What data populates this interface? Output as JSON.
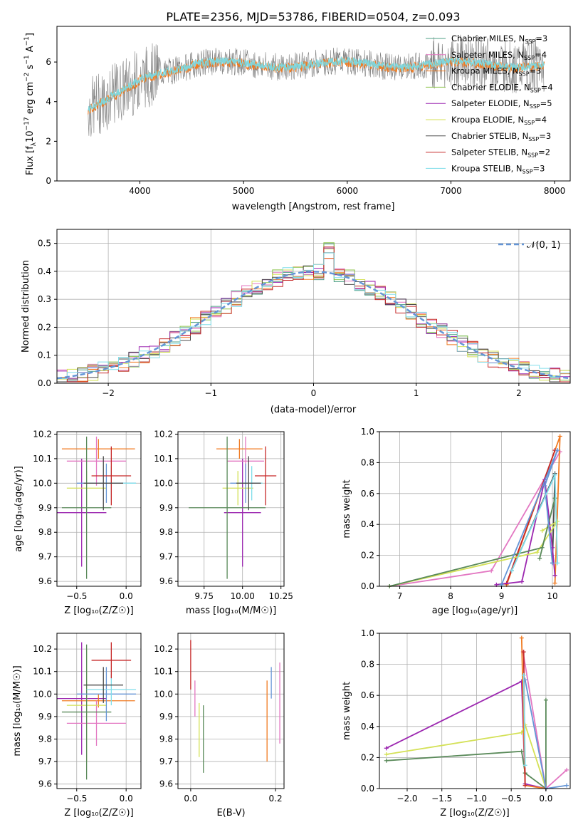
{
  "figure": {
    "title": "PLATE=2356, MJD=53786, FIBERID=0504, z=0.093"
  },
  "legend_models": [
    {
      "name": "Chabrier MILES, N",
      "sub": "SSP",
      "n": "=3",
      "color": "#4c9f85"
    },
    {
      "name": "Salpeter MILES, N",
      "sub": "SSP",
      "n": "=4",
      "color": "#e377c2"
    },
    {
      "name": "Kroupa MILES, N",
      "sub": "SSP",
      "n": "=3",
      "color": "#f07b22"
    },
    {
      "name": "Chabrier ELODIE, N",
      "sub": "SSP",
      "n": "=4",
      "color": "#8bc34a"
    },
    {
      "name": "Salpeter ELODIE, N",
      "sub": "SSP",
      "n": "=5",
      "color": "#9c27b0"
    },
    {
      "name": "Kroupa ELODIE, N",
      "sub": "SSP",
      "n": "=4",
      "color": "#d4e157"
    },
    {
      "name": "Chabrier STELIB, N",
      "sub": "SSP",
      "n": "=3",
      "color": "#4a4a4a"
    },
    {
      "name": "Salpeter STELIB, N",
      "sub": "SSP",
      "n": "=2",
      "color": "#c62828"
    },
    {
      "name": "Kroupa STELIB, N",
      "sub": "SSP",
      "n": "=3",
      "color": "#80deea"
    }
  ],
  "chart_data": [
    {
      "type": "line",
      "panel": "spectrum",
      "xlabel": "wavelength [Angstrom, rest frame]",
      "ylabel_parts": {
        "main": "Flux [f",
        "lam": "λ",
        "mid": "10",
        "exp1": "−17",
        "unit": " erg cm",
        "exp2": "−2",
        "s": " s",
        "exp3": "−1",
        "a": " A",
        "exp4": "−1",
        "end": "]"
      },
      "xlim": [
        3200,
        8150
      ],
      "ylim": [
        0,
        7.8
      ],
      "xticks": [
        4000,
        5000,
        6000,
        7000,
        8000
      ],
      "yticks": [
        0,
        2,
        4,
        6
      ],
      "grid": false,
      "legend_position": "upper-right",
      "data_color": "#808080",
      "model_color": "#7fd6dc",
      "model_alt_color": "#f07b22"
    },
    {
      "type": "histogram",
      "panel": "residuals",
      "xlabel": "(data-model)/error",
      "ylabel": "Normed distribution",
      "xlim": [
        -2.5,
        2.5
      ],
      "ylim": [
        0,
        0.55
      ],
      "xticks": [
        -2,
        -1,
        0,
        1,
        2
      ],
      "yticks": [
        0.0,
        0.1,
        0.2,
        0.3,
        0.4,
        0.5
      ],
      "grid": true,
      "legend_position": "upper-right",
      "legend_label": "𝒩(0, 1)",
      "legend_color": "#6495d6"
    },
    {
      "type": "scatter",
      "panel": "age-Z",
      "xlabel": "Z [log₁₀(Z/Z☉)]",
      "ylabel": "age  [log₁₀(age/yr)]",
      "xlim": [
        -0.7,
        0.15
      ],
      "ylim": [
        9.58,
        10.21
      ],
      "xticks": [
        -0.5,
        0.0
      ],
      "yticks": [
        9.6,
        9.7,
        9.8,
        9.9,
        10.0,
        10.1,
        10.2
      ],
      "points": [
        {
          "x": -0.45,
          "xerr": 0.25,
          "y": 9.88,
          "yerr": 0.22,
          "color": "#9c27b0"
        },
        {
          "x": -0.28,
          "xerr": 0.37,
          "y": 10.14,
          "yerr": 0.04,
          "color": "#f07b22"
        },
        {
          "x": -0.3,
          "xerr": 0.3,
          "y": 10.09,
          "yerr": 0.1,
          "color": "#e377c2"
        },
        {
          "x": -0.4,
          "xerr": 0.2,
          "y": 9.98,
          "yerr": 0.07,
          "color": "#d4e157"
        },
        {
          "x": -0.4,
          "xerr": 0.25,
          "y": 9.9,
          "yerr": 0.29,
          "color": "#5a8a5a"
        },
        {
          "x": -0.2,
          "xerr": 0.3,
          "y": 10.0,
          "yerr": 0.08,
          "color": "#6495d6"
        },
        {
          "x": -0.15,
          "xerr": 0.25,
          "y": 10.0,
          "yerr": 0.07,
          "color": "#80deea"
        },
        {
          "x": -0.15,
          "xerr": 0.2,
          "y": 10.03,
          "yerr": 0.12,
          "color": "#c62828"
        },
        {
          "x": -0.23,
          "xerr": 0.2,
          "y": 10.0,
          "yerr": 0.11,
          "color": "#4a4a4a"
        }
      ]
    },
    {
      "type": "scatter",
      "panel": "age-mass",
      "xlabel": "mass [log₁₀(M/M☉)]",
      "ylabel": "",
      "xlim": [
        9.58,
        10.27
      ],
      "ylim": [
        9.58,
        10.21
      ],
      "xticks": [
        9.75,
        10.0,
        10.25
      ],
      "yticks": [
        9.6,
        9.7,
        9.8,
        9.9,
        10.0,
        10.1,
        10.2
      ],
      "points": [
        {
          "x": 10.0,
          "xerr": 0.12,
          "y": 9.88,
          "yerr": 0.22,
          "color": "#9c27b0"
        },
        {
          "x": 9.98,
          "xerr": 0.15,
          "y": 10.14,
          "yerr": 0.04,
          "color": "#f07b22"
        },
        {
          "x": 10.02,
          "xerr": 0.12,
          "y": 10.09,
          "yerr": 0.1,
          "color": "#e377c2"
        },
        {
          "x": 9.97,
          "xerr": 0.1,
          "y": 9.98,
          "yerr": 0.07,
          "color": "#d4e157"
        },
        {
          "x": 9.9,
          "xerr": 0.25,
          "y": 9.9,
          "yerr": 0.29,
          "color": "#5a8a5a"
        },
        {
          "x": 10.02,
          "xerr": 0.1,
          "y": 10.0,
          "yerr": 0.08,
          "color": "#6495d6"
        },
        {
          "x": 10.06,
          "xerr": 0.07,
          "y": 10.0,
          "yerr": 0.07,
          "color": "#80deea"
        },
        {
          "x": 10.15,
          "xerr": 0.07,
          "y": 10.03,
          "yerr": 0.12,
          "color": "#c62828"
        },
        {
          "x": 10.04,
          "xerr": 0.08,
          "y": 10.0,
          "yerr": 0.11,
          "color": "#4a4a4a"
        }
      ]
    },
    {
      "type": "line",
      "panel": "weight-age",
      "xlabel": "age  [log₁₀(age/yr)]",
      "ylabel": "mass weight",
      "xlim": [
        6.6,
        10.35
      ],
      "ylim": [
        0,
        1.0
      ],
      "xticks": [
        7,
        8,
        9,
        10
      ],
      "yticks": [
        0.0,
        0.2,
        0.4,
        0.6,
        0.8,
        1.0
      ],
      "grid": true,
      "series": [
        {
          "color": "#4a4a4a",
          "x": [
            9.2,
            10.05,
            10.0
          ],
          "y": [
            0.1,
            0.73,
            0.15
          ]
        },
        {
          "color": "#e377c2",
          "x": [
            6.8,
            8.8,
            10.15
          ],
          "y": [
            0.0,
            0.1,
            0.87
          ]
        },
        {
          "color": "#f07b22",
          "x": [
            9.1,
            10.15,
            10.05
          ],
          "y": [
            0.01,
            0.97,
            0.02
          ]
        },
        {
          "color": "#c62828",
          "x": [
            9.1,
            10.05
          ],
          "y": [
            0.02,
            0.88
          ]
        },
        {
          "color": "#9c27b0",
          "x": [
            8.9,
            9.4,
            9.85,
            10.0,
            10.05
          ],
          "y": [
            0.01,
            0.03,
            0.69,
            0.25,
            0.07
          ]
        },
        {
          "color": "#d4e157",
          "x": [
            6.8,
            9.7,
            10.1,
            9.8
          ],
          "y": [
            0.0,
            0.22,
            0.42,
            0.36
          ]
        },
        {
          "color": "#5a8a5a",
          "x": [
            6.8,
            9.8,
            10.05,
            9.75
          ],
          "y": [
            0.0,
            0.25,
            0.57,
            0.18
          ]
        },
        {
          "color": "#6495d6",
          "x": [
            9.0,
            10.1,
            9.85,
            10.0
          ],
          "y": [
            0.01,
            0.88,
            0.65,
            0.15
          ]
        },
        {
          "color": "#80deea",
          "x": [
            9.2,
            10.05,
            10.1
          ],
          "y": [
            0.1,
            0.72,
            0.15
          ]
        }
      ]
    },
    {
      "type": "scatter",
      "panel": "mass-Z",
      "xlabel": "Z [log₁₀(Z/Z☉)]",
      "ylabel": "mass [log₁₀(M/M☉)]",
      "xlim": [
        -0.7,
        0.15
      ],
      "ylim": [
        9.58,
        10.27
      ],
      "xticks": [
        -0.5,
        0.0
      ],
      "yticks": [
        9.6,
        9.7,
        9.8,
        9.9,
        10.0,
        10.1,
        10.2
      ],
      "points": [
        {
          "x": -0.45,
          "xerr": 0.25,
          "y": 9.98,
          "yerr": 0.25,
          "color": "#9c27b0"
        },
        {
          "x": -0.28,
          "xerr": 0.37,
          "y": 9.97,
          "yerr": 0.03,
          "color": "#f07b22"
        },
        {
          "x": -0.3,
          "xerr": 0.3,
          "y": 9.87,
          "yerr": 0.1,
          "color": "#e377c2"
        },
        {
          "x": -0.4,
          "xerr": 0.2,
          "y": 9.95,
          "yerr": 0.25,
          "color": "#d4e157"
        },
        {
          "x": -0.4,
          "xerr": 0.25,
          "y": 9.92,
          "yerr": 0.3,
          "color": "#5a8a5a"
        },
        {
          "x": -0.2,
          "xerr": 0.3,
          "y": 10.0,
          "yerr": 0.12,
          "color": "#6495d6"
        },
        {
          "x": -0.15,
          "xerr": 0.25,
          "y": 10.02,
          "yerr": 0.07,
          "color": "#80deea"
        },
        {
          "x": -0.15,
          "xerr": 0.2,
          "y": 10.15,
          "yerr": 0.08,
          "color": "#c62828"
        },
        {
          "x": -0.23,
          "xerr": 0.2,
          "y": 10.04,
          "yerr": 0.08,
          "color": "#4a4a4a"
        }
      ]
    },
    {
      "type": "scatter",
      "panel": "mass-EBV",
      "xlabel": "E(B-V)",
      "ylabel": "",
      "xlim": [
        -0.03,
        0.22
      ],
      "ylim": [
        9.58,
        10.27
      ],
      "xticks": [
        0.0,
        0.2
      ],
      "yticks": [
        9.6,
        9.7,
        9.8,
        9.9,
        10.0,
        10.1,
        10.2
      ],
      "points": [
        {
          "x": 0.0,
          "y": 10.13,
          "yerr": 0.11,
          "color": "#c62828"
        },
        {
          "x": 0.01,
          "y": 9.98,
          "yerr": 0.08,
          "color": "#e377c2"
        },
        {
          "x": 0.02,
          "y": 9.84,
          "yerr": 0.12,
          "color": "#d4e157"
        },
        {
          "x": 0.03,
          "y": 9.8,
          "yerr": 0.15,
          "color": "#5a8a5a"
        },
        {
          "x": 0.18,
          "y": 9.88,
          "yerr": 0.18,
          "color": "#f07b22"
        },
        {
          "x": 0.19,
          "y": 10.05,
          "yerr": 0.07,
          "color": "#6495d6"
        },
        {
          "x": 0.21,
          "y": 9.96,
          "yerr": 0.18,
          "color": "#e377c2"
        }
      ]
    },
    {
      "type": "line",
      "panel": "weight-Z",
      "xlabel": "Z [log₁₀(Z/Z☉)]",
      "ylabel": "mass weight",
      "xlim": [
        -2.4,
        0.35
      ],
      "ylim": [
        0,
        1.0
      ],
      "xticks": [
        -2.0,
        -1.5,
        -1.0,
        -0.5,
        0.0
      ],
      "yticks": [
        0.0,
        0.2,
        0.4,
        0.6,
        0.8,
        1.0
      ],
      "grid": true,
      "series": [
        {
          "color": "#9c27b0",
          "x": [
            -2.3,
            -0.35,
            -0.3,
            0.0
          ],
          "y": [
            0.26,
            0.69,
            0.03,
            0.0
          ]
        },
        {
          "color": "#d4e157",
          "x": [
            -2.3,
            -0.35,
            -0.3,
            0.0
          ],
          "y": [
            0.22,
            0.36,
            0.41,
            0.0
          ]
        },
        {
          "color": "#5a8a5a",
          "x": [
            -2.3,
            -0.35,
            -0.3,
            0.0,
            0.0
          ],
          "y": [
            0.18,
            0.24,
            0.1,
            0.0,
            0.57
          ]
        },
        {
          "color": "#e377c2",
          "x": [
            -0.33,
            0.0,
            0.3
          ],
          "y": [
            0.88,
            0.0,
            0.12
          ]
        },
        {
          "color": "#f07b22",
          "x": [
            -0.35,
            -0.3,
            0.0
          ],
          "y": [
            0.97,
            0.02,
            0.0
          ]
        },
        {
          "color": "#6495d6",
          "x": [
            -0.3,
            0.0,
            0.3
          ],
          "y": [
            0.7,
            0.0,
            0.02
          ]
        },
        {
          "color": "#c62828",
          "x": [
            -0.32,
            -0.3
          ],
          "y": [
            0.88,
            0.02
          ]
        },
        {
          "color": "#80deea",
          "x": [
            -0.32,
            -0.3
          ],
          "y": [
            0.73,
            0.15
          ]
        }
      ]
    }
  ]
}
